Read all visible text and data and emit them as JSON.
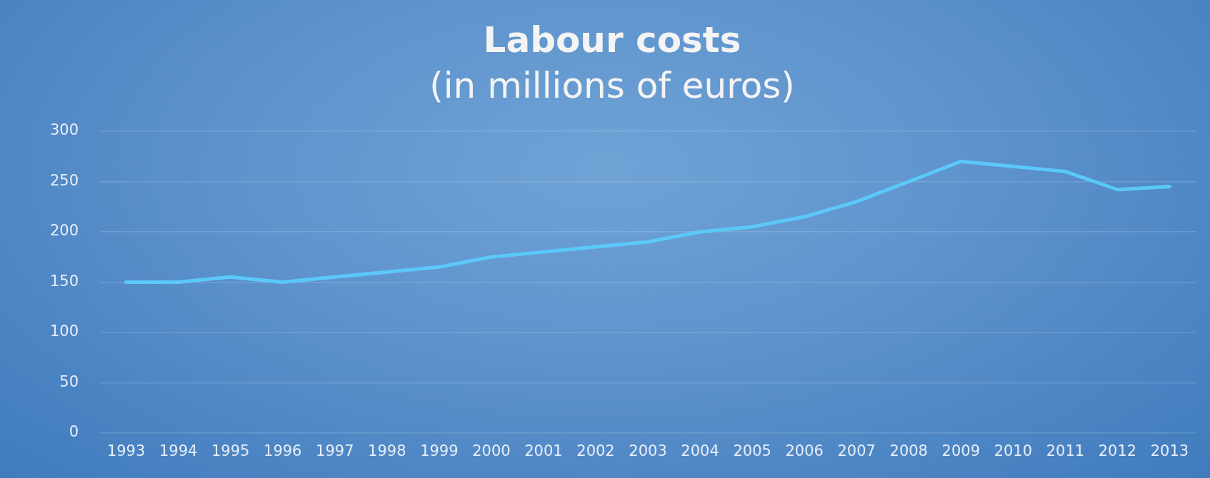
{
  "chart_data": {
    "type": "line",
    "title": "Labour costs",
    "subtitle": "(in millions of euros)",
    "categories": [
      "1993",
      "1994",
      "1995",
      "1996",
      "1997",
      "1998",
      "1999",
      "2000",
      "2001",
      "2002",
      "2003",
      "2004",
      "2005",
      "2006",
      "2007",
      "2008",
      "2009",
      "2010",
      "2011",
      "2012",
      "2013"
    ],
    "series": [
      {
        "color": "#5bc8fa",
        "values": [
          150,
          150,
          155,
          150,
          155,
          160,
          165,
          175,
          180,
          185,
          190,
          200,
          205,
          215,
          230,
          250,
          270,
          265,
          260,
          242,
          245
        ]
      }
    ],
    "ylim": [
      0,
      300
    ],
    "yticks": [
      0,
      50,
      100,
      150,
      200,
      250,
      300
    ],
    "grid": "y",
    "legend": false,
    "marker": "none",
    "line_style": "solid"
  }
}
